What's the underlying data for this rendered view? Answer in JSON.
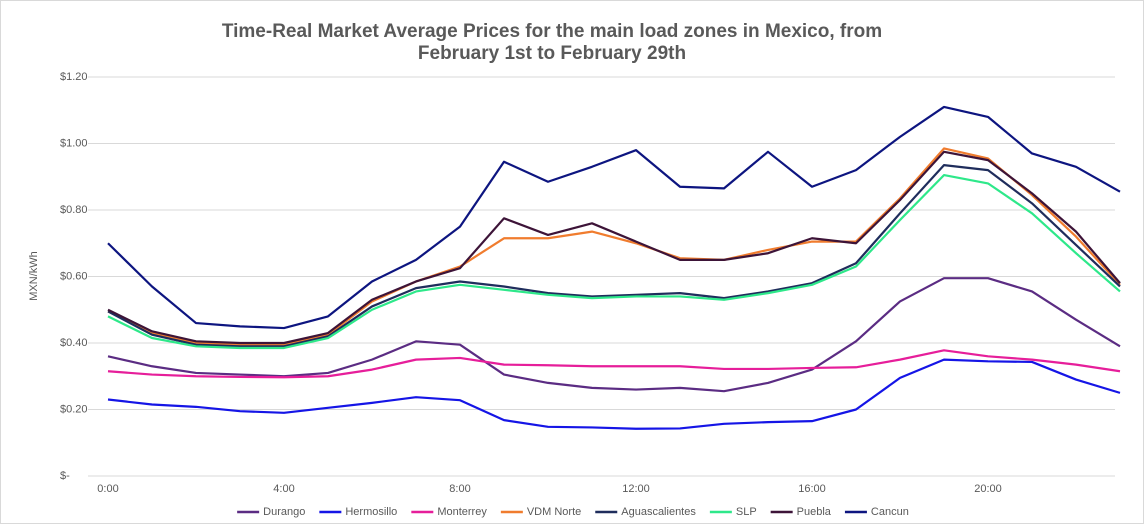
{
  "chart_data": {
    "type": "line",
    "title": [
      "Time-Real Market Average Prices for the main load zones in Mexico, from",
      "February 1st to February 29th"
    ],
    "y_label": "MXN/kWh",
    "categories": [
      "0:00",
      null,
      null,
      null,
      "4:00",
      null,
      null,
      null,
      "8:00",
      null,
      null,
      null,
      "12:00",
      null,
      null,
      null,
      "16:00",
      null,
      null,
      null,
      "20:00",
      null,
      null,
      null
    ],
    "ylim": [
      0,
      1.2
    ],
    "yticks": [
      {
        "value": 0,
        "label": "$-"
      },
      {
        "value": 0.2,
        "label": "$0.20"
      },
      {
        "value": 0.4,
        "label": "$0.40"
      },
      {
        "value": 0.6,
        "label": "$0.60"
      },
      {
        "value": 0.8,
        "label": "$0.80"
      },
      {
        "value": 1.0,
        "label": "$1.00"
      },
      {
        "value": 1.2,
        "label": "$1.20"
      }
    ],
    "grid": true,
    "legend": "bottom",
    "series": [
      {
        "name": "Durango",
        "color": "#5b2c83",
        "values": [
          0.36,
          0.33,
          0.31,
          0.305,
          0.3,
          0.31,
          0.35,
          0.405,
          0.395,
          0.305,
          0.28,
          0.265,
          0.26,
          0.265,
          0.255,
          0.28,
          0.32,
          0.405,
          0.525,
          0.595,
          0.595,
          0.555,
          0.47,
          0.39
        ]
      },
      {
        "name": "Hermosillo",
        "color": "#1515e6",
        "values": [
          0.23,
          0.215,
          0.208,
          0.195,
          0.19,
          0.205,
          0.22,
          0.237,
          0.228,
          0.168,
          0.148,
          0.146,
          0.142,
          0.143,
          0.157,
          0.162,
          0.165,
          0.2,
          0.295,
          0.35,
          0.345,
          0.343,
          0.29,
          0.25
        ]
      },
      {
        "name": "Monterrey",
        "color": "#e61e9a",
        "values": [
          0.315,
          0.305,
          0.3,
          0.298,
          0.297,
          0.3,
          0.32,
          0.35,
          0.355,
          0.335,
          0.333,
          0.33,
          0.33,
          0.33,
          0.322,
          0.322,
          0.325,
          0.327,
          0.35,
          0.378,
          0.36,
          0.35,
          0.335,
          0.315
        ]
      },
      {
        "name": "VDM Norte",
        "color": "#f07c2e",
        "values": [
          0.495,
          0.43,
          0.4,
          0.395,
          0.395,
          0.425,
          0.525,
          0.585,
          0.63,
          0.715,
          0.715,
          0.735,
          0.7,
          0.655,
          0.65,
          0.68,
          0.705,
          0.705,
          0.835,
          0.985,
          0.955,
          0.845,
          0.72,
          0.575
        ]
      },
      {
        "name": "Aguascalientes",
        "color": "#1f2d5c",
        "values": [
          0.495,
          0.425,
          0.395,
          0.39,
          0.39,
          0.42,
          0.51,
          0.565,
          0.585,
          0.57,
          0.55,
          0.54,
          0.545,
          0.55,
          0.535,
          0.555,
          0.58,
          0.64,
          0.79,
          0.935,
          0.92,
          0.82,
          0.695,
          0.57
        ]
      },
      {
        "name": "SLP",
        "color": "#2ee88a",
        "values": [
          0.48,
          0.415,
          0.39,
          0.385,
          0.385,
          0.415,
          0.5,
          0.555,
          0.575,
          0.56,
          0.545,
          0.535,
          0.54,
          0.54,
          0.53,
          0.55,
          0.575,
          0.63,
          0.77,
          0.905,
          0.88,
          0.79,
          0.67,
          0.555
        ]
      },
      {
        "name": "Puebla",
        "color": "#3d1438",
        "values": [
          0.5,
          0.435,
          0.405,
          0.4,
          0.4,
          0.43,
          0.53,
          0.585,
          0.625,
          0.775,
          0.725,
          0.76,
          0.705,
          0.65,
          0.65,
          0.67,
          0.715,
          0.7,
          0.83,
          0.975,
          0.95,
          0.85,
          0.735,
          0.58
        ]
      },
      {
        "name": "Cancun",
        "color": "#0d1580",
        "values": [
          0.7,
          0.57,
          0.46,
          0.45,
          0.445,
          0.48,
          0.585,
          0.65,
          0.75,
          0.945,
          0.885,
          0.93,
          0.98,
          0.87,
          0.865,
          0.975,
          0.87,
          0.92,
          1.02,
          1.11,
          1.08,
          0.97,
          0.93,
          0.855
        ]
      }
    ]
  }
}
